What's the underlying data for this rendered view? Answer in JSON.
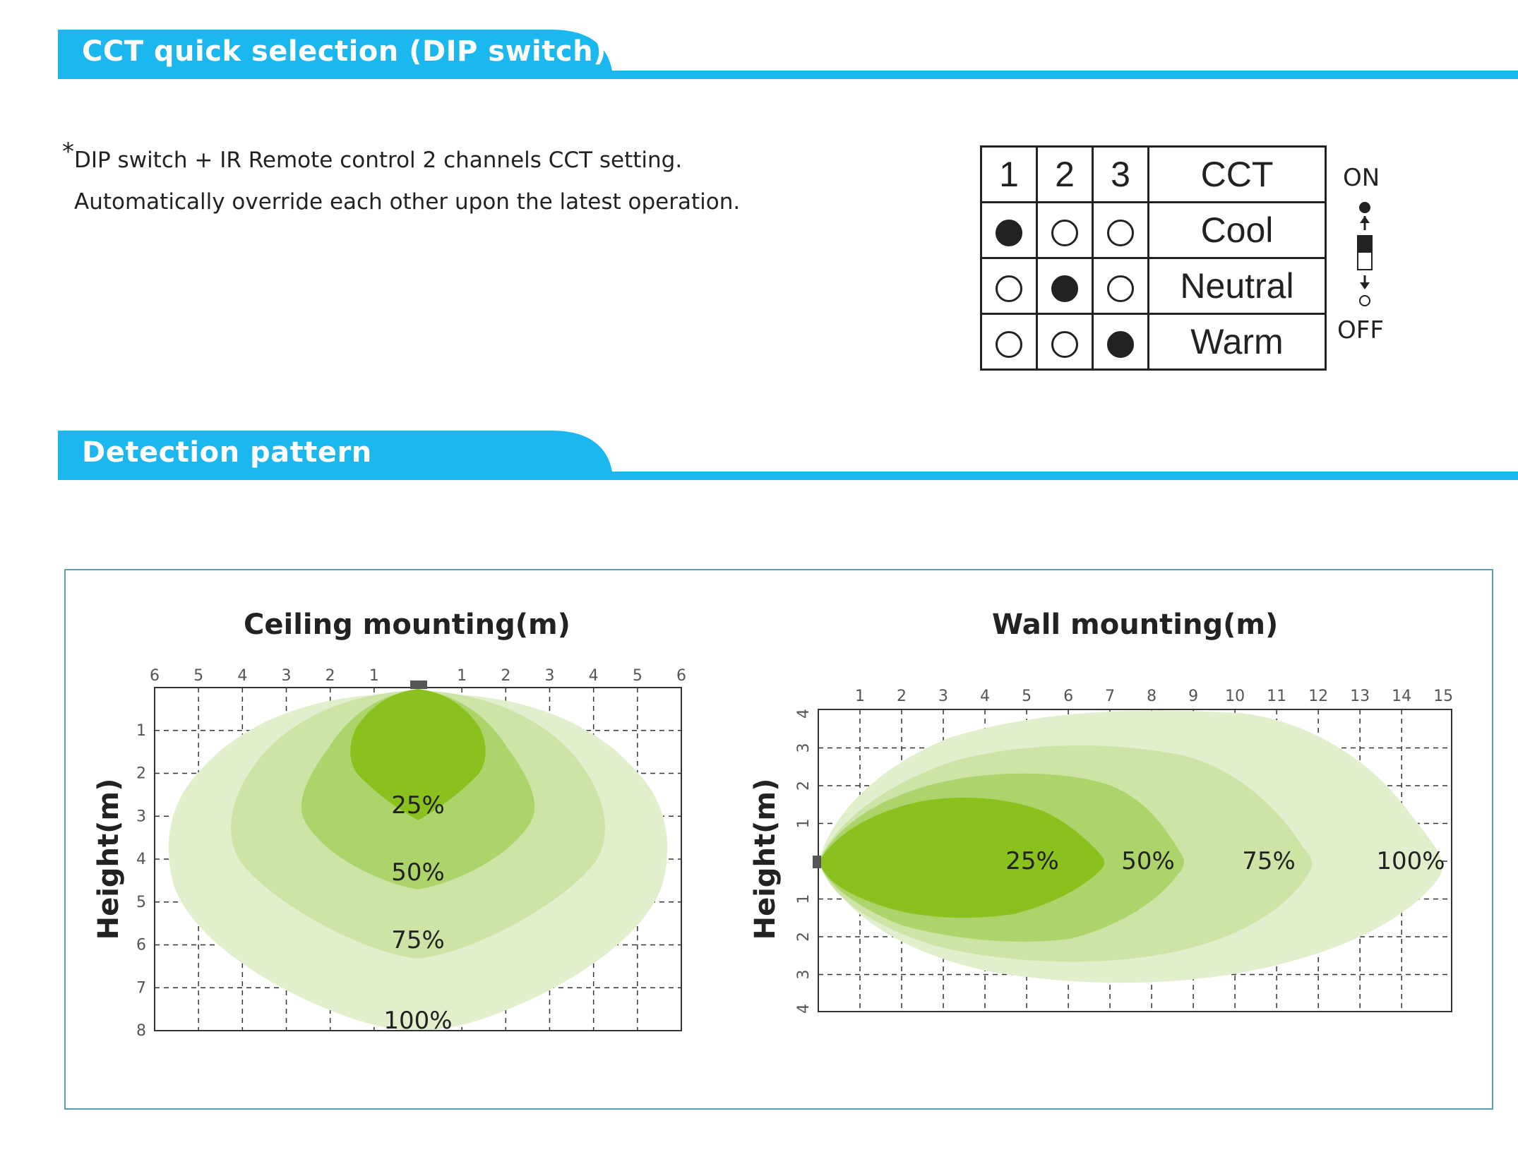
{
  "brand_color": "#1ab8ee",
  "sections": {
    "cct": {
      "title": "CCT quick selection (DIP switch)"
    },
    "detection": {
      "title": "Detection pattern"
    }
  },
  "note": {
    "star": "*",
    "line1": "DIP switch + IR Remote control 2 channels CCT setting.",
    "line2": "Automatically override each other upon the latest operation."
  },
  "dip_table": {
    "headers": [
      "1",
      "2",
      "3",
      "CCT"
    ],
    "rows": [
      {
        "switches": [
          true,
          false,
          false
        ],
        "cct": "Cool"
      },
      {
        "switches": [
          false,
          true,
          false
        ],
        "cct": "Neutral"
      },
      {
        "switches": [
          false,
          false,
          true
        ],
        "cct": "Warm"
      }
    ],
    "on_label": "ON",
    "off_label": "OFF"
  },
  "ceiling": {
    "title": "Ceiling mounting(m)",
    "y_label": "Height(m)",
    "x_ticks": [
      "6",
      "5",
      "4",
      "3",
      "2",
      "1",
      "1",
      "2",
      "3",
      "4",
      "5",
      "6"
    ],
    "y_ticks": [
      "1",
      "2",
      "3",
      "4",
      "5",
      "6",
      "7",
      "8"
    ],
    "zones": [
      "100%",
      "75%",
      "50%",
      "25%"
    ],
    "colors": [
      "#e2efcc",
      "#cde4a6",
      "#acd46a",
      "#8bc11f"
    ]
  },
  "wall": {
    "title": "Wall mounting(m)",
    "y_label": "Height(m)",
    "x_ticks": [
      "1",
      "2",
      "3",
      "4",
      "5",
      "6",
      "7",
      "8",
      "9",
      "10",
      "11",
      "12",
      "13",
      "14",
      "15"
    ],
    "y_ticks": [
      "4",
      "3",
      "2",
      "1",
      "1",
      "2",
      "3",
      "4"
    ],
    "zones": [
      "100%",
      "75%",
      "50%",
      "25%"
    ],
    "colors": [
      "#e2efcc",
      "#cde4a6",
      "#acd46a",
      "#8bc11f"
    ]
  }
}
